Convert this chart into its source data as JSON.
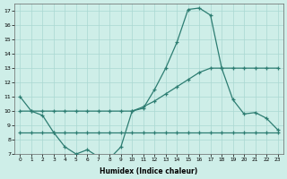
{
  "xlabel": "Humidex (Indice chaleur)",
  "x_values": [
    0,
    1,
    2,
    3,
    4,
    5,
    6,
    7,
    8,
    9,
    10,
    11,
    12,
    13,
    14,
    15,
    16,
    17,
    18,
    19,
    20,
    21,
    22,
    23
  ],
  "line1": [
    11.0,
    10.0,
    9.7,
    8.5,
    7.5,
    7.0,
    7.3,
    6.8,
    6.7,
    7.5,
    10.0,
    10.2,
    11.5,
    13.0,
    14.8,
    17.1,
    17.2,
    16.7,
    13.0,
    10.8,
    9.8,
    9.9,
    9.5,
    8.7
  ],
  "line2": [
    10.0,
    10.0,
    10.0,
    10.0,
    10.0,
    10.0,
    10.0,
    10.0,
    10.0,
    10.0,
    10.0,
    10.3,
    10.7,
    11.2,
    11.7,
    12.2,
    12.7,
    13.0,
    13.0,
    13.0,
    13.0,
    13.0,
    13.0,
    13.0
  ],
  "line3": [
    8.5,
    8.5,
    8.5,
    8.5,
    8.5,
    8.5,
    8.5,
    8.5,
    8.5,
    8.5,
    8.5,
    8.5,
    8.5,
    8.5,
    8.5,
    8.5,
    8.5,
    8.5,
    8.5,
    8.5,
    8.5,
    8.5,
    8.5,
    8.5
  ],
  "line_color": "#2d7d72",
  "bg_color": "#ceeee8",
  "grid_color": "#aad8d2",
  "ylim": [
    7,
    17.5
  ],
  "xlim": [
    -0.5,
    23.5
  ],
  "yticks": [
    7,
    8,
    9,
    10,
    11,
    12,
    13,
    14,
    15,
    16,
    17
  ],
  "xticks": [
    0,
    1,
    2,
    3,
    4,
    5,
    6,
    7,
    8,
    9,
    10,
    11,
    12,
    13,
    14,
    15,
    16,
    17,
    18,
    19,
    20,
    21,
    22,
    23
  ]
}
